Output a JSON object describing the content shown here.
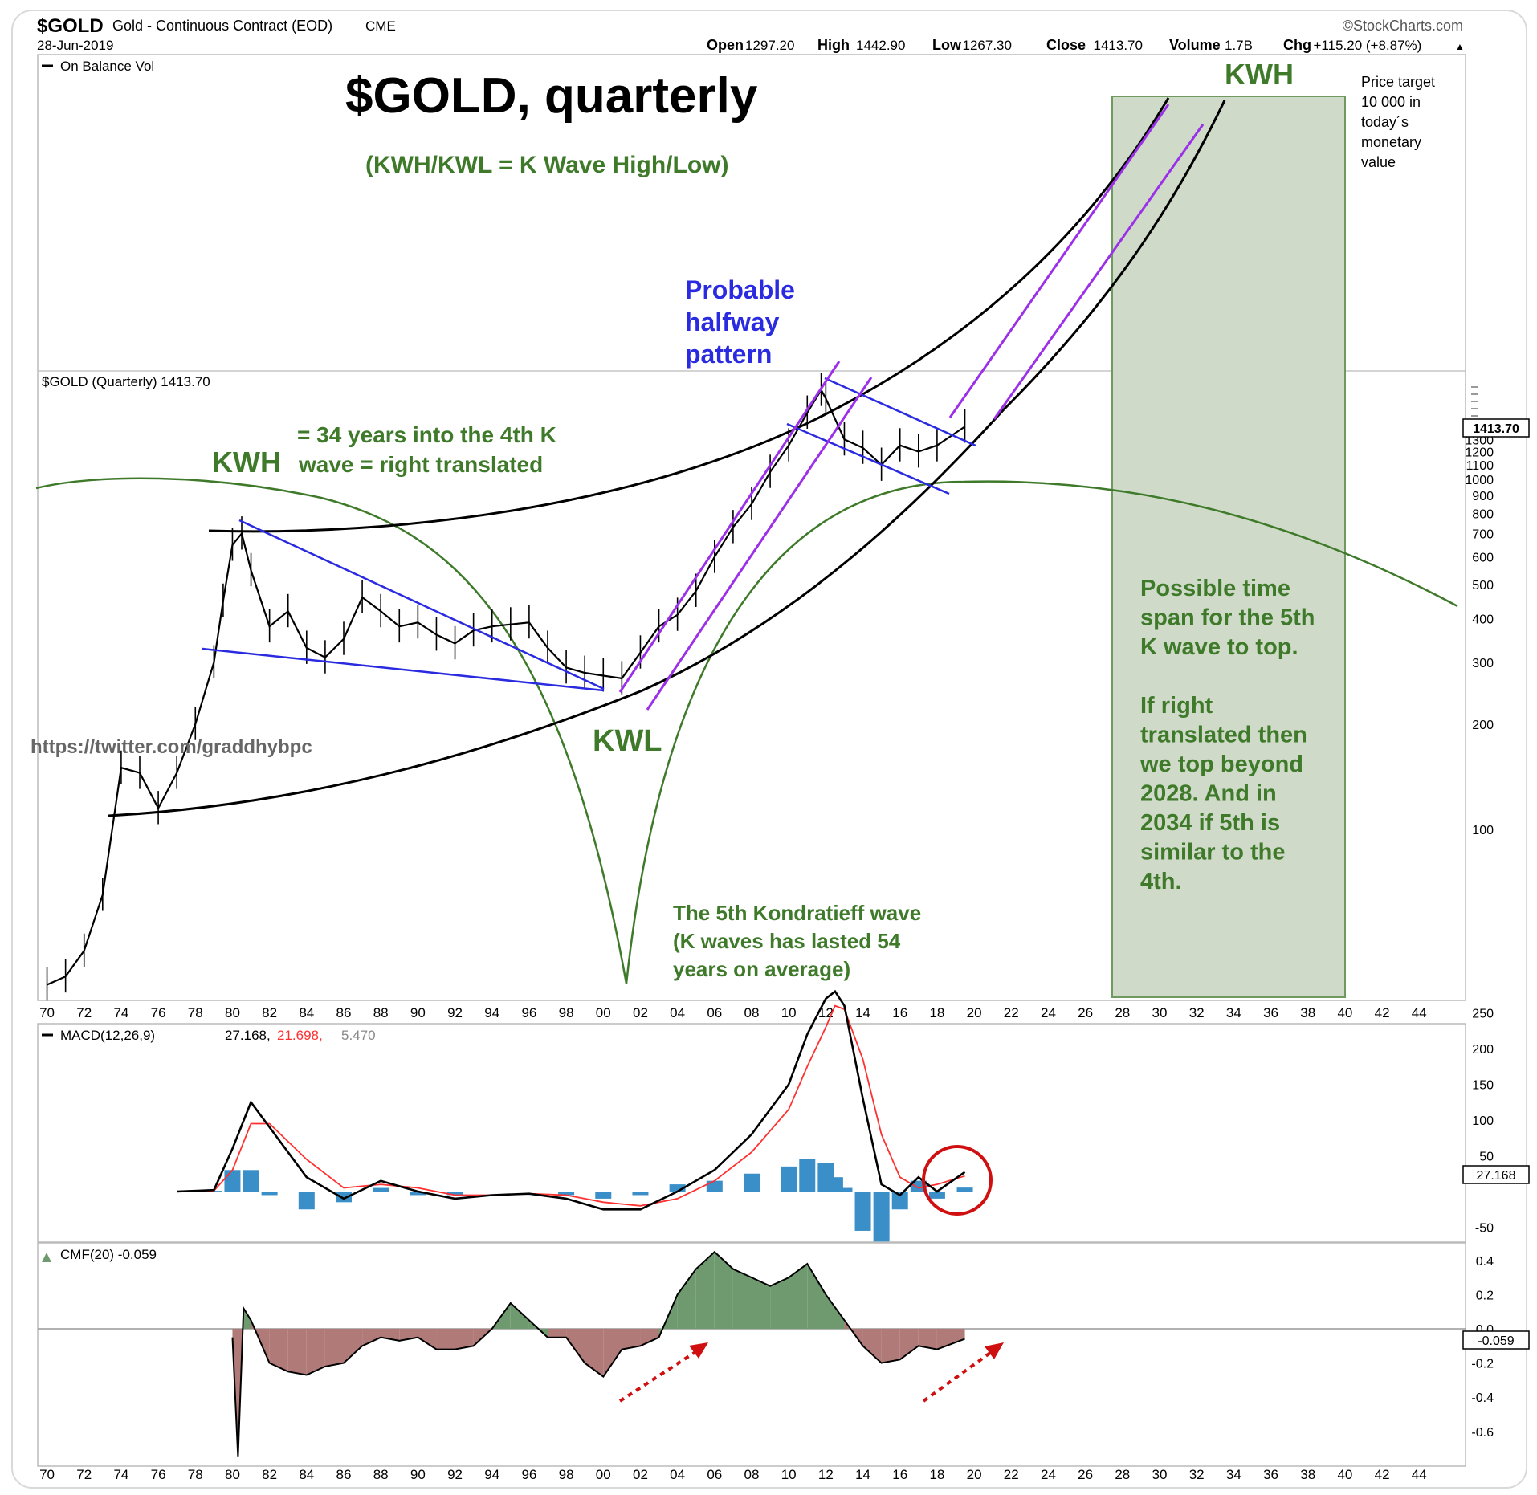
{
  "header": {
    "symbol": "$GOLD",
    "description": "Gold - Continuous Contract (EOD)",
    "exchange": "CME",
    "date": "28-Jun-2019",
    "brand": "©StockCharts.com",
    "ohlc": [
      {
        "label": "Open",
        "value": "1297.20"
      },
      {
        "label": "High",
        "value": "1442.90"
      },
      {
        "label": "Low",
        "value": "1267.30"
      },
      {
        "label": "Close",
        "value": "1413.70"
      },
      {
        "label": "Volume",
        "value": "1.7B"
      },
      {
        "label": "Chg",
        "value": "+115.20 (+8.87%)"
      }
    ],
    "chg_arrow": "▲"
  },
  "obv_label": "On Balance Vol",
  "annotations": {
    "title": "$GOLD, quarterly",
    "subtitle": "(KWH/KWL = K Wave High/Low)",
    "kwh_top": "KWH",
    "price_target": [
      "Price target",
      "10 000 in",
      "today´s",
      "monetary",
      "value"
    ],
    "halfway": [
      "Probable",
      "halfway",
      "pattern"
    ],
    "kwh_left": "KWH",
    "years_note": [
      "= 34 years into the 4th K",
      "wave = right translated"
    ],
    "twitter": "https://twitter.com/graddhybpc",
    "kwl": "KWL",
    "fifth_wave": [
      "The 5th Kondratieff wave",
      "(K waves has lasted 54",
      "years on average)"
    ],
    "time_span": [
      "Possible time",
      "span for the 5th",
      "K wave to top.",
      "",
      "If right",
      "translated then",
      "we top beyond",
      "2028. And in",
      "2034 if 5th is",
      "similar to the",
      "4th."
    ]
  },
  "colors": {
    "price": "#000000",
    "trend_blue": "#2a2ae0",
    "channel_purple": "#9b30e8",
    "kwave_green": "#3e7a2a",
    "curve_black": "#000000",
    "time_box": "#cfdac8",
    "macd_line": "#000000",
    "signal_line": "#ff3030",
    "histogram": "#3a8fc8",
    "cmf_pos": "#6f9a6f",
    "cmf_neg": "#b07a78",
    "red_marks": "#d01010"
  },
  "chart_data": [
    {
      "type": "line",
      "name": "price",
      "label": "$GOLD (Quarterly) 1413.70",
      "last_value": "1413.70",
      "scale": "log",
      "x": [
        1970,
        1971,
        1972,
        1973,
        1974,
        1975,
        1976,
        1977,
        1978,
        1979,
        1979.5,
        1980,
        1980.5,
        1981,
        1982,
        1983,
        1984,
        1985,
        1986,
        1987,
        1988,
        1989,
        1990,
        1991,
        1992,
        1993,
        1994,
        1995,
        1996,
        1997,
        1998,
        1999,
        2000,
        2001,
        2002,
        2003,
        2004,
        2005,
        2006,
        2007,
        2008,
        2009,
        2010,
        2011,
        2011.75,
        2012,
        2013,
        2014,
        2015,
        2016,
        2017,
        2018,
        2019.5
      ],
      "y": [
        36,
        38,
        45,
        65,
        150,
        145,
        115,
        145,
        200,
        300,
        450,
        650,
        700,
        550,
        380,
        420,
        330,
        310,
        350,
        460,
        420,
        380,
        390,
        360,
        340,
        370,
        380,
        385,
        390,
        330,
        290,
        280,
        275,
        270,
        320,
        380,
        410,
        480,
        600,
        730,
        850,
        1050,
        1250,
        1550,
        1800,
        1700,
        1300,
        1230,
        1100,
        1250,
        1200,
        1250,
        1413.7
      ],
      "yticks": [
        100,
        200,
        300,
        400,
        500,
        600,
        700,
        800,
        900,
        1000,
        1100,
        1200,
        1300,
        1400,
        1500,
        1600,
        1700,
        1800,
        1900,
        2000
      ],
      "yticks_low": [
        "100",
        "200",
        "300",
        "400",
        "500",
        "600",
        "700",
        "800",
        "900",
        "1000",
        "1100",
        "1200",
        "1300"
      ],
      "xticks": [
        "70",
        "72",
        "74",
        "76",
        "78",
        "80",
        "82",
        "84",
        "86",
        "88",
        "90",
        "92",
        "94",
        "96",
        "98",
        "00",
        "02",
        "04",
        "06",
        "08",
        "10",
        "12",
        "14",
        "16",
        "18",
        "20",
        "22",
        "24",
        "26",
        "28",
        "30",
        "32",
        "34",
        "36",
        "38",
        "40",
        "42",
        "44"
      ],
      "xlim": [
        1969.5,
        2046.5
      ]
    },
    {
      "type": "line",
      "name": "macd",
      "label": "MACD(12,26,9)",
      "macd_value": "27.168",
      "signal_value": "21.698",
      "hist_value": "5.470",
      "last_value": "27.168",
      "x": [
        1977,
        1979,
        1980,
        1981,
        1982,
        1984,
        1986,
        1988,
        1990,
        1992,
        1994,
        1996,
        1998,
        2000,
        2002,
        2004,
        2006,
        2008,
        2010,
        2011,
        2012,
        2012.5,
        2013,
        2014,
        2015,
        2016,
        2017,
        2018,
        2019.5
      ],
      "macd": [
        0,
        2,
        60,
        125,
        90,
        20,
        -10,
        15,
        0,
        -10,
        -5,
        -3,
        -10,
        -25,
        -25,
        0,
        30,
        80,
        150,
        220,
        270,
        280,
        260,
        130,
        10,
        -5,
        20,
        0,
        27.168
      ],
      "signal": [
        0,
        1,
        30,
        95,
        95,
        45,
        5,
        10,
        5,
        -5,
        -5,
        -3,
        -5,
        -15,
        -20,
        -10,
        15,
        55,
        115,
        175,
        230,
        260,
        255,
        185,
        80,
        20,
        5,
        10,
        21.698
      ],
      "hist": [
        0,
        1,
        30,
        30,
        -5,
        -25,
        -15,
        5,
        -5,
        -5,
        0,
        0,
        -5,
        -10,
        -5,
        10,
        15,
        25,
        35,
        45,
        40,
        20,
        5,
        -55,
        -70,
        -25,
        15,
        -10,
        5.47
      ],
      "yticks": [
        "250",
        "200",
        "150",
        "100",
        "50",
        "-50"
      ],
      "ylim": [
        -80,
        290
      ]
    },
    {
      "type": "area",
      "name": "cmf",
      "label": "CMF(20)",
      "last_value": "-0.059",
      "x": [
        1980,
        1980.3,
        1980.6,
        1981,
        1982,
        1983,
        1984,
        1985,
        1986,
        1987,
        1988,
        1989,
        1990,
        1991,
        1992,
        1993,
        1994,
        1995,
        1996,
        1997,
        1998,
        1999,
        2000,
        2001,
        2002,
        2003,
        2004,
        2005,
        2006,
        2007,
        2008,
        2009,
        2010,
        2011,
        2012,
        2013,
        2014,
        2015,
        2016,
        2017,
        2018,
        2019.5
      ],
      "y": [
        -0.05,
        -0.75,
        0.12,
        0.05,
        -0.2,
        -0.25,
        -0.27,
        -0.22,
        -0.2,
        -0.1,
        -0.05,
        -0.07,
        -0.05,
        -0.12,
        -0.12,
        -0.1,
        0.0,
        0.15,
        0.05,
        -0.05,
        -0.05,
        -0.2,
        -0.28,
        -0.12,
        -0.1,
        -0.05,
        0.2,
        0.35,
        0.45,
        0.35,
        0.3,
        0.25,
        0.3,
        0.38,
        0.2,
        0.05,
        -0.1,
        -0.2,
        -0.18,
        -0.1,
        -0.12,
        -0.059
      ],
      "yticks": [
        "0.4",
        "0.2",
        "0.0",
        "-0.2",
        "-0.4",
        "-0.6"
      ],
      "ylim": [
        -0.75,
        0.48
      ]
    }
  ]
}
